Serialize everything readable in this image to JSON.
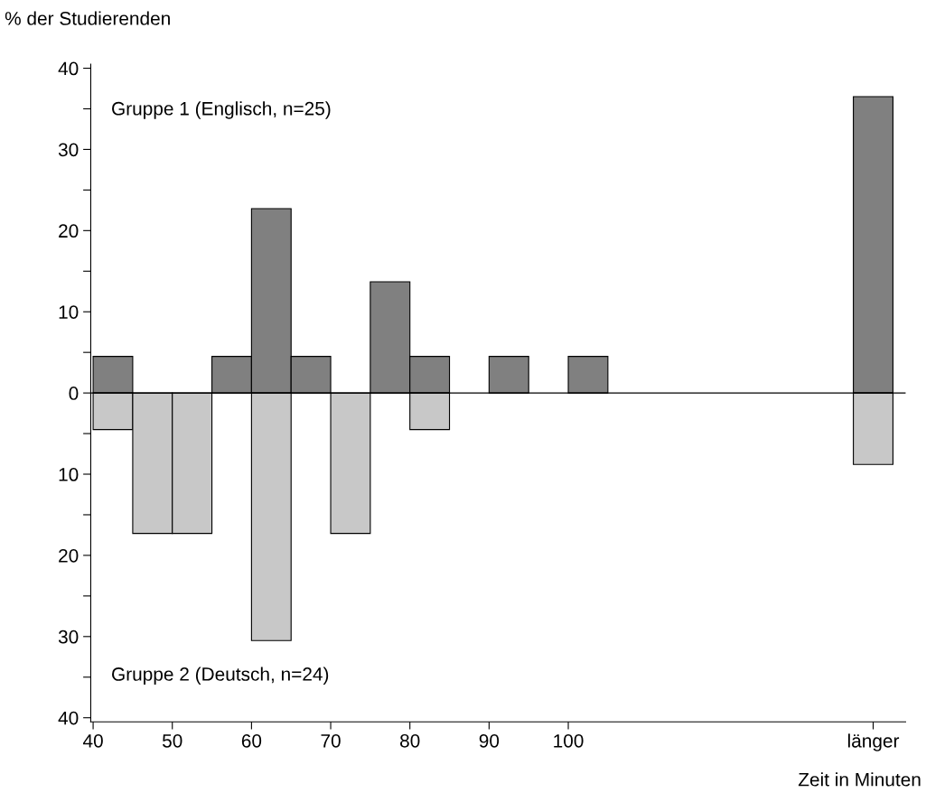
{
  "chart_data": {
    "type": "histogram",
    "ylabel": "% der Studierenden",
    "xlabel": "Zeit in Minuten",
    "bins": [
      40,
      45,
      50,
      55,
      60,
      65,
      70,
      75,
      80,
      85,
      90,
      95,
      100,
      105,
      136,
      141
    ],
    "series": [
      {
        "color": "#808080",
        "values": [
          4.5,
          0,
          0,
          4.5,
          22.7,
          4.5,
          0,
          13.7,
          4.5,
          0,
          4.5,
          0,
          4.5,
          0,
          36.5
        ]
      },
      {
        "color": "#c8c8c8",
        "values": [
          -4.5,
          -17.3,
          -17.3,
          0,
          -30.5,
          0,
          -17.3,
          0,
          -4.5,
          0,
          0,
          0,
          0,
          0,
          -8.8
        ]
      }
    ],
    "xlim": [
      39.7,
      142.6
    ],
    "xticks": [
      40,
      50,
      60,
      70,
      80,
      90,
      100,
      {
        "value": 138.5,
        "label": "länger"
      }
    ],
    "ylim": [
      -40.5,
      40.5
    ],
    "yticks": [
      {
        "value": -40,
        "label": "40"
      },
      {
        "value": -35,
        "label": null
      },
      {
        "value": -30,
        "label": "30"
      },
      {
        "value": -25,
        "label": null
      },
      {
        "value": -20,
        "label": "20"
      },
      {
        "value": -15,
        "label": null
      },
      {
        "value": -10,
        "label": "10"
      },
      {
        "value": -5,
        "label": null
      },
      0,
      {
        "value": 5,
        "label": null
      },
      10,
      {
        "value": 15,
        "label": null
      },
      20,
      {
        "value": 25,
        "label": null
      },
      30,
      {
        "value": 35,
        "label": null
      },
      40
    ],
    "ref_lines": [
      {
        "axis": "y",
        "value": 0,
        "color": "#000000"
      }
    ],
    "annotations": [
      "Gruppe 1 (Englisch, n=25)",
      "Gruppe 2 (Deutsch, n=24)"
    ],
    "grid": false,
    "legend": false
  }
}
